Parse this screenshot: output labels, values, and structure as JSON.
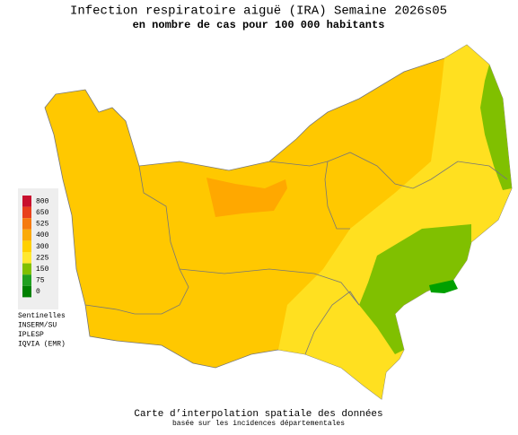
{
  "header": {
    "title": "Infection respiratoire aiguë (IRA) Semaine 2026s05",
    "subtitle": "en nombre de cas pour 100 000 habitants"
  },
  "legend": {
    "items": [
      {
        "label": 800,
        "color": "#c8102e"
      },
      {
        "label": 650,
        "color": "#e8401c"
      },
      {
        "label": 525,
        "color": "#f57a10"
      },
      {
        "label": 400,
        "color": "#fbaa08"
      },
      {
        "label": 300,
        "color": "#ffd000"
      },
      {
        "label": 225,
        "color": "#ffe830"
      },
      {
        "label": 150,
        "color": "#80c000"
      },
      {
        "label": 75,
        "color": "#20a020"
      },
      {
        "label": 0,
        "color": "#008000"
      }
    ]
  },
  "credits": [
    "Sentinelles",
    "INSERM/SU",
    "IPLESP",
    "IQVIA (EMR)"
  ],
  "footer": {
    "line1": "Carte d’interpolation spatiale des données",
    "line2": "basée sur les incidences départementales"
  }
}
